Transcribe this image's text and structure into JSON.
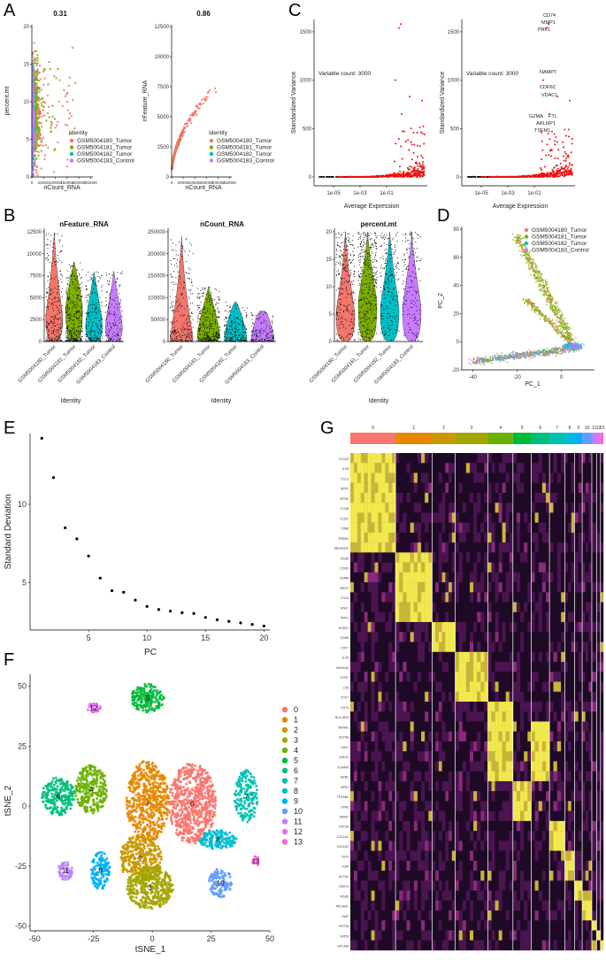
{
  "panel_labels": [
    "A",
    "B",
    "C",
    "D",
    "E",
    "F",
    "G"
  ],
  "identities": [
    "GSM5004180_Tumor",
    "GSM5004181_Tumor",
    "GSM5004182_Tumor",
    "GSM5004183_Control"
  ],
  "identity_colors": [
    "#f4766b",
    "#7cae00",
    "#00bfc4",
    "#c77cff"
  ],
  "chart_data": [
    {
      "id": "A1",
      "type": "scatter",
      "title": "0.31",
      "xlabel": "nCount_RNA",
      "ylabel": "percent.mt",
      "xlim": [
        0,
        260000
      ],
      "ylim": [
        0,
        20
      ],
      "xticks": [
        "0",
        "50000",
        "100000",
        "150000",
        "200000",
        "250000"
      ],
      "yticks": [
        "0",
        "5",
        "10",
        "15",
        "20"
      ],
      "legend_title": "Identity"
    },
    {
      "id": "A2",
      "type": "scatter",
      "title": "0.86",
      "xlabel": "nCount_RNA",
      "ylabel": "nFeature_RNA",
      "xlim": [
        0,
        260000
      ],
      "ylim": [
        0,
        12500
      ],
      "xticks": [
        "0",
        "50000",
        "100000",
        "150000",
        "200000",
        "250000"
      ],
      "yticks": [
        "0",
        "2500",
        "5000",
        "7500",
        "10000",
        "12500"
      ],
      "legend_title": "Identity"
    },
    {
      "id": "B",
      "type": "violin",
      "panels": [
        {
          "title": "nFeature_RNA",
          "ylim": [
            0,
            12500
          ],
          "yticks": [
            "0",
            "2500",
            "5000",
            "7500",
            "10000",
            "12500"
          ],
          "medians": [
            2800,
            3800,
            1900,
            1700
          ],
          "maxes": [
            12400,
            9100,
            8000,
            8000
          ]
        },
        {
          "title": "nCount_RNA",
          "ylim": [
            0,
            260000
          ],
          "yticks": [
            "0",
            "50000",
            "100000",
            "150000",
            "200000",
            "250000"
          ],
          "medians": [
            9000,
            14000,
            5000,
            4000
          ],
          "maxes": [
            250000,
            130000,
            95000,
            70000
          ]
        },
        {
          "title": "percent.mt",
          "ylim": [
            0,
            20
          ],
          "yticks": [
            "0",
            "5",
            "10",
            "15",
            "20"
          ],
          "medians": [
            5,
            7,
            6,
            6
          ],
          "maxes": [
            20,
            20,
            20,
            20
          ]
        }
      ],
      "xlabel": "Identity"
    },
    {
      "id": "C",
      "type": "scatter",
      "xlabel": "Average Expression",
      "ylabel": "Standardized Variance",
      "xticks": [
        "1e-05",
        "1e-03",
        "1e-01"
      ],
      "yticks": [
        "0",
        "500",
        "1000",
        "1500"
      ],
      "ylim": [
        0,
        1600
      ],
      "annotation": "Variable count: 3000",
      "genes": [
        {
          "name": "CD74",
          "x": 0.8,
          "y": 1580
        },
        {
          "name": "MMP1",
          "x": 0.6,
          "y": 1520
        },
        {
          "name": "PRF1",
          "x": 0.2,
          "y": 1470
        },
        {
          "name": "NAMPT",
          "x": 0.1,
          "y": 880
        },
        {
          "name": "CDK6C",
          "x": 0.3,
          "y": 690
        },
        {
          "name": "VDAC1",
          "x": 0.4,
          "y": 620
        },
        {
          "name": "GZMA",
          "x": -0.1,
          "y": 430
        },
        {
          "name": "FTL",
          "x": 0.7,
          "y": 430
        },
        {
          "name": "ARL6IP1",
          "x": 0.2,
          "y": 360
        },
        {
          "name": "TSEM1",
          "x": 0.1,
          "y": 300
        }
      ]
    },
    {
      "id": "D",
      "type": "scatter",
      "xlabel": "PC_1",
      "ylabel": "PC_2",
      "xlim": [
        -45,
        15
      ],
      "ylim": [
        -20,
        82
      ],
      "xticks": [
        "-40",
        "-20",
        "0"
      ],
      "yticks": [
        "-20",
        "0",
        "20",
        "40",
        "60",
        "80"
      ]
    },
    {
      "id": "E",
      "type": "scatter",
      "xlabel": "PC",
      "ylabel": "Standard Deviation",
      "xlim": [
        0,
        20.5
      ],
      "ylim": [
        2,
        14.5
      ],
      "xticks": [
        "5",
        "10",
        "15",
        "20"
      ],
      "yticks": [
        "5",
        "10"
      ],
      "x": [
        1,
        2,
        3,
        4,
        5,
        6,
        7,
        8,
        9,
        10,
        11,
        12,
        13,
        14,
        15,
        16,
        17,
        18,
        19,
        20
      ],
      "values": [
        14.2,
        11.7,
        8.5,
        7.8,
        6.7,
        5.3,
        4.5,
        4.4,
        3.9,
        3.5,
        3.3,
        3.2,
        3.1,
        3.05,
        2.8,
        2.65,
        2.55,
        2.45,
        2.35,
        2.25
      ]
    },
    {
      "id": "F",
      "type": "scatter",
      "xlabel": "tSNE_1",
      "ylabel": "tSNE_2",
      "xlim": [
        -52,
        50
      ],
      "ylim": [
        -52,
        55
      ],
      "xticks": [
        "-50",
        "-25",
        "0",
        "25",
        "50"
      ],
      "yticks": [
        "-50",
        "-25",
        "0",
        "25",
        "50"
      ],
      "clusters": [
        "0",
        "1",
        "2",
        "3",
        "4",
        "5",
        "6",
        "7",
        "8",
        "9",
        "10",
        "11",
        "12",
        "13"
      ],
      "cluster_colors": [
        "#f8766d",
        "#e58700",
        "#c99800",
        "#a3a500",
        "#6bb100",
        "#00ba38",
        "#00bf7d",
        "#00c0af",
        "#00bcd8",
        "#00b0f6",
        "#619cff",
        "#b983ff",
        "#e76bf3",
        "#fd61d1"
      ],
      "centers": [
        [
          17,
          1
        ],
        [
          -2,
          2
        ],
        [
          -5,
          -22
        ],
        [
          -1,
          -34
        ],
        [
          -26,
          7
        ],
        [
          -2,
          45
        ],
        [
          -40,
          4
        ],
        [
          40,
          4
        ],
        [
          28,
          -14
        ],
        [
          -22,
          -27
        ],
        [
          29,
          -32
        ],
        [
          -37,
          -27
        ],
        [
          -25,
          41
        ],
        [
          44,
          -23
        ]
      ]
    },
    {
      "id": "G",
      "type": "heatmap",
      "clusters": [
        "0",
        "1",
        "2",
        "3",
        "4",
        "5",
        "6",
        "7",
        "8",
        "9",
        "10",
        "11",
        "12",
        "13"
      ],
      "cluster_colors": [
        "#f8766d",
        "#e58700",
        "#c99800",
        "#a3a500",
        "#6bb100",
        "#00ba38",
        "#00bf7d",
        "#00c0af",
        "#00bcd8",
        "#00b0f6",
        "#619cff",
        "#b983ff",
        "#e76bf3",
        "#fd61d1"
      ],
      "genes": [
        "CXCL8",
        "IL1B",
        "CCL3",
        "SPP1",
        "APOE",
        "C1QB",
        "C1QC",
        "CD68",
        "TREM2",
        "SELENOP",
        "CD3E",
        "CD3D",
        "GZMB",
        "NKG7",
        "CCL5",
        "GNLY",
        "PRF1",
        "KLRD1",
        "CD8A",
        "CST7",
        "IL7R",
        "MS4A4A",
        "CCR7",
        "LTB",
        "TCF7",
        "CD74",
        "HLA-DRA",
        "MS4A1",
        "CD79A",
        "IGKC",
        "IGHG1",
        "JCHAIN",
        "MZB1",
        "XBP1",
        "TPSAB1",
        "CPA3",
        "MKI67",
        "TOP2A",
        "COL1A1",
        "COL1A2",
        "DCN",
        "LUM",
        "ACTA2",
        "TAGLN",
        "RGS5",
        "PECAM1",
        "VWF",
        "KRT18",
        "KRT8",
        "EPCAM"
      ]
    }
  ]
}
